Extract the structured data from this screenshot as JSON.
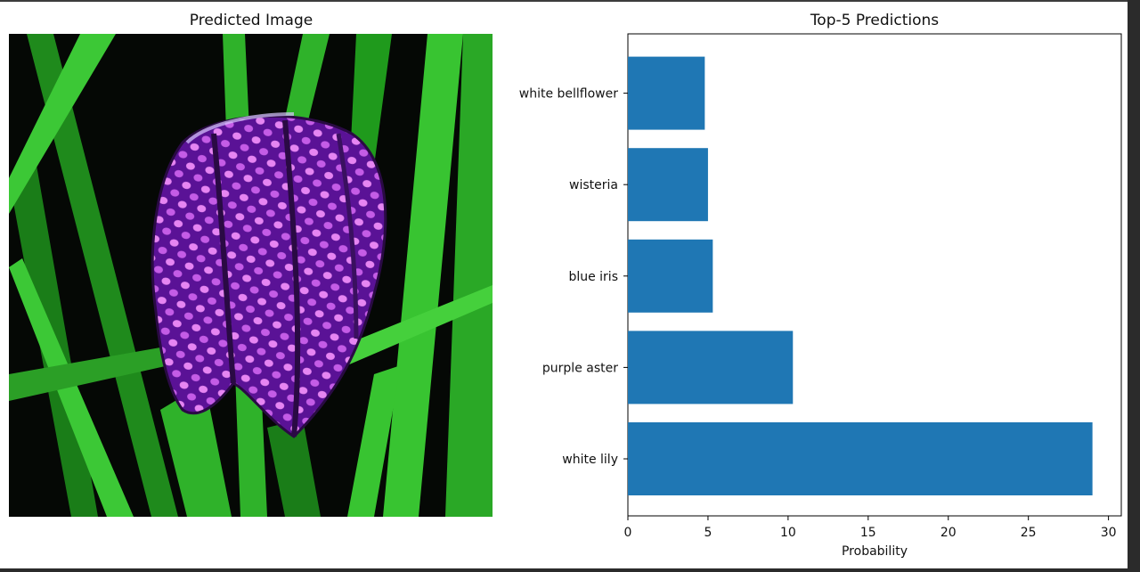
{
  "figure": {
    "image_panel": {
      "title": "Predicted Image",
      "image": {
        "subject": "purple checkered bell-shaped flower (fritillary) among green grass blades",
        "colors": {
          "background": "#050805",
          "grass": "#2fb22a",
          "flower": "#6a1ea8",
          "spots": "#e07cf0"
        }
      }
    },
    "chart_panel": {
      "title": "Top-5 Predictions"
    }
  },
  "chart_data": {
    "type": "bar",
    "orientation": "horizontal",
    "title": "Top-5 Predictions",
    "xlabel": "Probability",
    "ylabel": "",
    "categories": [
      "white lily",
      "purple aster",
      "blue iris",
      "wisteria",
      "white bellflower"
    ],
    "values": [
      29.0,
      10.3,
      5.3,
      5.0,
      4.8
    ],
    "xlim": [
      0,
      30.8
    ],
    "xticks": [
      0,
      5,
      10,
      15,
      20,
      25,
      30
    ],
    "grid": false,
    "bar_color": "#1f77b4"
  }
}
